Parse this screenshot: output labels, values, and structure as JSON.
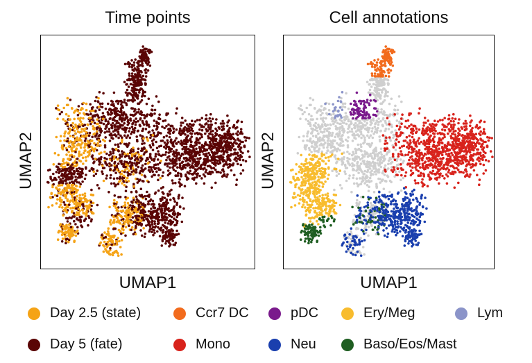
{
  "chart_data": [
    {
      "type": "scatter",
      "title": "Time points",
      "xlabel": "UMAP1",
      "ylabel": "UMAP2",
      "axis_ticks": false,
      "legend_position": "bottom",
      "series": [
        {
          "name": "Day 2.5 (state)",
          "color": "#f5a316",
          "regions": "left lobe, lower-center lobe and bottom protrusions of the embedding"
        },
        {
          "name": "Day 5 (fate)",
          "color": "#5a0505",
          "regions": "upper stalk, central body and large right lobe of the embedding, plus a horizontal band through the left lobe"
        }
      ]
    },
    {
      "type": "scatter",
      "title": "Cell annotations",
      "xlabel": "UMAP1",
      "ylabel": "UMAP2",
      "axis_ticks": false,
      "legend_position": "bottom",
      "background_color": "#cfcfcf",
      "series": [
        {
          "name": "Ccr7 DC",
          "color": "#f26b1d",
          "regions": "tip of the upper stalk"
        },
        {
          "name": "pDC",
          "color": "#7a1a8c",
          "regions": "upper-left of the central body"
        },
        {
          "name": "Ery/Meg",
          "color": "#f8bc2e",
          "regions": "lower-left lobe"
        },
        {
          "name": "Lym",
          "color": "#8b94c9",
          "regions": "upper-left edge"
        },
        {
          "name": "Mono",
          "color": "#d8231c",
          "regions": "large right lobe"
        },
        {
          "name": "Neu",
          "color": "#1a3fae",
          "regions": "lower-center lobe"
        },
        {
          "name": "Baso/Eos/Mast",
          "color": "#1f5e22",
          "regions": "bottom-left protrusion"
        }
      ]
    }
  ],
  "legend": [
    {
      "label": "Day 2.5 (state)",
      "color": "#f5a316"
    },
    {
      "label": "Ccr7 DC",
      "color": "#f26b1d"
    },
    {
      "label": "pDC",
      "color": "#7a1a8c"
    },
    {
      "label": "Ery/Meg",
      "color": "#f8bc2e"
    },
    {
      "label": "Lym",
      "color": "#8b94c9"
    },
    {
      "label": "Day 5 (fate)",
      "color": "#5a0505"
    },
    {
      "label": "Mono",
      "color": "#d8231c"
    },
    {
      "label": "Neu",
      "color": "#1a3fae"
    },
    {
      "label": "Baso/Eos/Mast",
      "color": "#1f5e22"
    }
  ]
}
